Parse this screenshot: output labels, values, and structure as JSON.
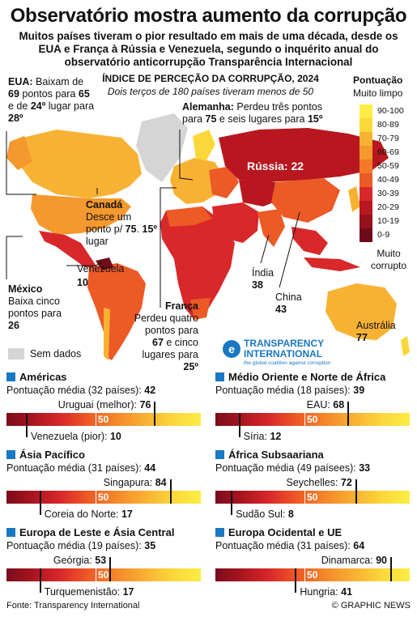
{
  "title": "Observatório mostra aumento da corrupção",
  "subtitle": "Muitos países tiveram o pior resultado em mais de uma década, desde os EUA e França à Rússia e Venezuela, segundo o inquérito anual do observatório anticorrupção Transparência Internacional",
  "map": {
    "heading": "ÍNDICE DE PERCEÇÃO DA CORRUPÇÃO, 2024",
    "subheading": "Dois terços de 180 países tiveram menos de 50",
    "legend": {
      "title": "Pontuação",
      "top_label": "Muito limpo",
      "bottom_label_1": "Muito",
      "bottom_label_2": "corrupto",
      "bins": [
        "90-100",
        "80-89",
        "70-79",
        "60-69",
        "50-59",
        "40-49",
        "30-39",
        "20-29",
        "10-19",
        "0-9"
      ],
      "colors": [
        "#fcec44",
        "#fbd83a",
        "#f8b233",
        "#f5982e",
        "#f27a29",
        "#ec5a26",
        "#d9282a",
        "#b8171f",
        "#96101d",
        "#6e0b18"
      ]
    },
    "no_data": "Sem dados",
    "no_data_color": "#d5d5d5",
    "notes": {
      "usa": [
        "EUA:",
        " Baixam de ",
        "69",
        " pontos para ",
        "65",
        " e de ",
        "24º",
        " lugar para ",
        "28º"
      ],
      "germany": [
        "Alemanha:",
        " Perdeu três pontos para ",
        "75",
        " e seis lugares para ",
        "15º"
      ],
      "canada": [
        "Canadá",
        "Desce um ponto p/ ",
        "75",
        ". ",
        "15º",
        " lugar"
      ],
      "mexico": [
        "México",
        "Baixa cinco pontos para ",
        "26"
      ],
      "france": [
        "França",
        " Perdeu quatro pontos para ",
        "67",
        " e cinco lugares para ",
        "25º"
      ]
    },
    "labels": {
      "russia": "Rússia: 22",
      "venezuela_name": "Venezuela",
      "venezuela_score": "10",
      "india_name": "Índia",
      "india_score": "38",
      "china_name": "China",
      "china_score": "43",
      "australia_name": "Austrália",
      "australia_score": "77"
    },
    "ti_logo": {
      "line1": "TRANSPARENCY",
      "line2": "INTERNATIONAL",
      "tagline": "the global coalition against corruption"
    }
  },
  "regions": [
    {
      "name": "Américas",
      "avg_label": "Pontuação média (32 países): ",
      "avg": 42,
      "best_label": "Uruguai (melhor): ",
      "best": 76,
      "worst_label": "Venezuela (pior): ",
      "worst": 10
    },
    {
      "name": "Médio Oriente e Norte de África",
      "avg_label": "Pontuação média (18 países): ",
      "avg": 39,
      "best_label": "EAU: ",
      "best": 68,
      "worst_label": "Síria: ",
      "worst": 12
    },
    {
      "name": "Ásia Pacífico",
      "avg_label": "Pontuação média (31 países): ",
      "avg": 44,
      "best_label": "Singapura: ",
      "best": 84,
      "worst_label": "Coreia do Norte: ",
      "worst": 17
    },
    {
      "name": "África Subsaariana",
      "avg_label": "Pontuação média (49 paísees): ",
      "avg": 33,
      "best_label": "Seychelles: ",
      "best": 72,
      "worst_label": "Sudão Sul: ",
      "worst": 8
    },
    {
      "name": "Europa de Leste e Ásia Central",
      "avg_label": "Pontuação média (19 países): ",
      "avg": 35,
      "best_label": "Geórgia: ",
      "best": 53,
      "worst_label": "Turquemenistão: ",
      "worst": 17
    },
    {
      "name": "Europa Ocidental e UE",
      "avg_label": "Pontuação média (31 países): ",
      "avg": 64,
      "best_label": "Dinamarca: ",
      "best": 90,
      "worst_label": "Hungria: ",
      "worst": 41
    }
  ],
  "bar_mid_label": "50",
  "footer": {
    "source": "Fonte: Transparency International",
    "credit": "© GRAPHIC NEWS"
  }
}
